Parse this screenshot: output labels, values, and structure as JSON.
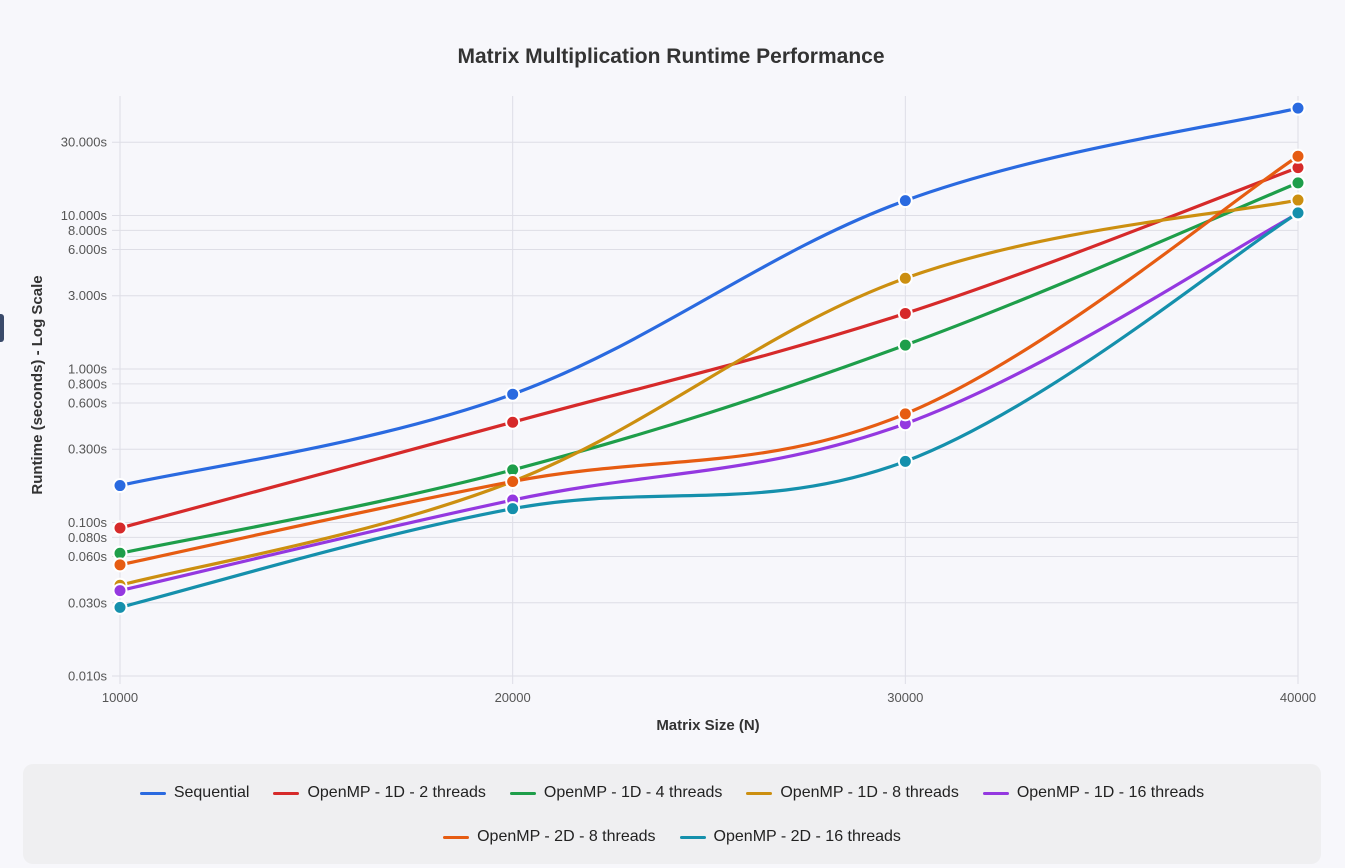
{
  "chart_data": {
    "type": "line",
    "title": "Matrix Multiplication Runtime Performance",
    "xlabel": "Matrix Size (N)",
    "ylabel": "Runtime (seconds) - Log Scale",
    "y_scale": "log",
    "ylim": [
      0.01,
      60
    ],
    "x": [
      10000,
      20000,
      30000,
      40000
    ],
    "x_tick_labels": [
      "10000",
      "20000",
      "30000",
      "40000"
    ],
    "y_ticks": [
      0.01,
      0.03,
      0.06,
      0.08,
      0.1,
      0.3,
      0.6,
      0.8,
      1,
      3,
      6,
      8,
      10,
      30
    ],
    "y_tick_labels": [
      "0.010s",
      "0.030s",
      "0.060s",
      "0.080s",
      "0.100s",
      "0.300s",
      "0.600s",
      "0.800s",
      "1.000s",
      "3.000s",
      "6.000s",
      "8.000s",
      "10.000s",
      "30.000s"
    ],
    "grid": true,
    "legend_position": "bottom",
    "series": [
      {
        "name": "Sequential",
        "color": "#2a6ae0",
        "values": [
          0.174,
          0.685,
          12.5,
          50.0
        ]
      },
      {
        "name": "OpenMP - 1D - 2 threads",
        "color": "#d62a2a",
        "values": [
          0.092,
          0.45,
          2.3,
          20.5
        ]
      },
      {
        "name": "OpenMP - 1D - 4 threads",
        "color": "#1e9e4a",
        "values": [
          0.063,
          0.22,
          1.43,
          16.3
        ]
      },
      {
        "name": "OpenMP - 1D - 8 threads",
        "color": "#cc8f10",
        "values": [
          0.039,
          0.185,
          3.9,
          12.6
        ]
      },
      {
        "name": "OpenMP - 1D - 16 threads",
        "color": "#9438e0",
        "values": [
          0.036,
          0.14,
          0.44,
          10.3
        ]
      },
      {
        "name": "OpenMP - 2D - 8 threads",
        "color": "#e65c12",
        "values": [
          0.053,
          0.185,
          0.51,
          24.3
        ]
      },
      {
        "name": "OpenMP - 2D - 16 threads",
        "color": "#1590ac",
        "values": [
          0.028,
          0.123,
          0.25,
          10.4
        ]
      }
    ]
  }
}
